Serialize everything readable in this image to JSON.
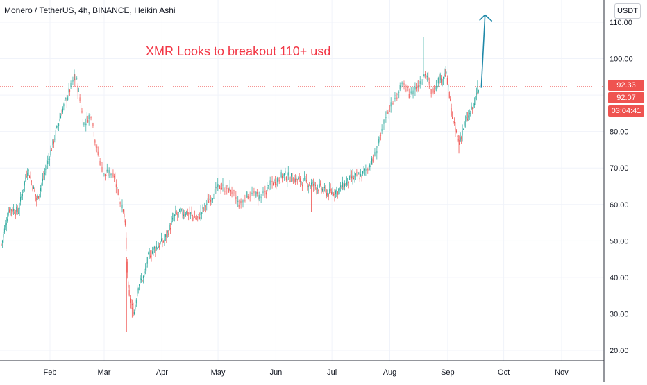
{
  "header": {
    "title": "Monero / TetherUS, 4h, BINANCE, Heikin Ashi",
    "annotation": "XMR Looks to breakout 110+ usd"
  },
  "price_axis": {
    "currency": "USDT",
    "last_price": "92.33",
    "prev_close": "92.07",
    "countdown": "03:04:41"
  },
  "colors": {
    "up": "#26a69a",
    "down": "#ef5350",
    "annotation": "#f23645",
    "arrow": "#1e88a8"
  },
  "chart_data": {
    "type": "candlestick",
    "style": "Heikin Ashi",
    "timeframe": "4h",
    "x_ticks": [
      "Feb",
      "Mar",
      "Apr",
      "May",
      "Jun",
      "Jul",
      "Aug",
      "Sep",
      "Oct",
      "Nov"
    ],
    "y_ticks": [
      "110.00",
      "100.00",
      "90.00",
      "80.00",
      "70.00",
      "60.00",
      "50.00",
      "40.00",
      "30.00",
      "20.00"
    ],
    "ylim": [
      17,
      115
    ],
    "price_path_points": [
      [
        "2020-01-06",
        49
      ],
      [
        "2020-01-10",
        59
      ],
      [
        "2020-01-15",
        58
      ],
      [
        "2020-01-20",
        70
      ],
      [
        "2020-01-25",
        61
      ],
      [
        "2020-01-31",
        72
      ],
      [
        "2020-02-07",
        85
      ],
      [
        "2020-02-12",
        92
      ],
      [
        "2020-02-15",
        95
      ],
      [
        "2020-02-19",
        82
      ],
      [
        "2020-02-23",
        85
      ],
      [
        "2020-02-26",
        75
      ],
      [
        "2020-03-01",
        68
      ],
      [
        "2020-03-06",
        69
      ],
      [
        "2020-03-09",
        62
      ],
      [
        "2020-03-12",
        56
      ],
      [
        "2020-03-14",
        35
      ],
      [
        "2020-03-17",
        30
      ],
      [
        "2020-03-19",
        38
      ],
      [
        "2020-03-22",
        40
      ],
      [
        "2020-03-25",
        46
      ],
      [
        "2020-03-28",
        48
      ],
      [
        "2020-04-02",
        50
      ],
      [
        "2020-04-08",
        57
      ],
      [
        "2020-04-14",
        58
      ],
      [
        "2020-04-20",
        56
      ],
      [
        "2020-04-27",
        62
      ],
      [
        "2020-05-02",
        65
      ],
      [
        "2020-05-08",
        64
      ],
      [
        "2020-05-12",
        60
      ],
      [
        "2020-05-18",
        63
      ],
      [
        "2020-05-24",
        62
      ],
      [
        "2020-05-30",
        66
      ],
      [
        "2020-06-05",
        68
      ],
      [
        "2020-06-11",
        67
      ],
      [
        "2020-06-17",
        66
      ],
      [
        "2020-06-23",
        65
      ],
      [
        "2020-06-29",
        63
      ],
      [
        "2020-07-05",
        64
      ],
      [
        "2020-07-11",
        67
      ],
      [
        "2020-07-17",
        68
      ],
      [
        "2020-07-23",
        72
      ],
      [
        "2020-07-27",
        78
      ],
      [
        "2020-07-30",
        85
      ],
      [
        "2020-08-03",
        88
      ],
      [
        "2020-08-07",
        93
      ],
      [
        "2020-08-12",
        90
      ],
      [
        "2020-08-16",
        93
      ],
      [
        "2020-08-20",
        96
      ],
      [
        "2020-08-23",
        91
      ],
      [
        "2020-08-27",
        94
      ],
      [
        "2020-08-31",
        96
      ],
      [
        "2020-09-04",
        82
      ],
      [
        "2020-09-07",
        77
      ],
      [
        "2020-09-10",
        82
      ],
      [
        "2020-09-14",
        86
      ],
      [
        "2020-09-18",
        92.07
      ]
    ],
    "wick_highs": [
      [
        "2020-02-14",
        97
      ],
      [
        "2020-08-19",
        106
      ],
      [
        "2020-08-31",
        98
      ],
      [
        "2020-09-17",
        94
      ]
    ],
    "wick_lows": [
      [
        "2020-03-13",
        25
      ],
      [
        "2020-03-16",
        29
      ],
      [
        "2020-09-07",
        74
      ],
      [
        "2020-06-20",
        58
      ]
    ],
    "last_price": 92.33,
    "prev_close": 92.07,
    "projection_arrow": {
      "start": [
        "2020-09-19",
        92
      ],
      "end": [
        "2020-09-21",
        112
      ]
    }
  }
}
